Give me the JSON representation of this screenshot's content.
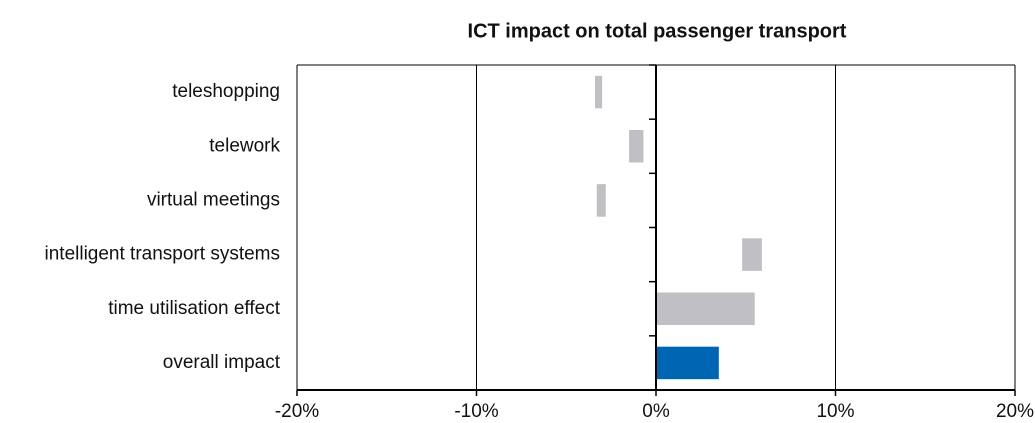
{
  "chart_data": {
    "type": "range-bar",
    "title": "ICT impact on total passenger transport",
    "categories": [
      "teleshopping",
      "telework",
      "virtual meetings",
      "intelligent transport systems",
      "time utilisation effect",
      "overall impact"
    ],
    "low": [
      -3.4,
      -1.5,
      -3.3,
      4.8,
      0,
      0
    ],
    "high": [
      -3.0,
      -0.7,
      -2.8,
      5.9,
      5.5,
      3.5
    ],
    "colors": [
      "#bfbfc4",
      "#bfbfc4",
      "#bfbfc4",
      "#bfbfc4",
      "#bfbfc4",
      "#0066b3"
    ],
    "xlim": [
      -20,
      20
    ],
    "xticks": [
      {
        "value": -20,
        "label": "-20%"
      },
      {
        "value": -10,
        "label": "-10%"
      },
      {
        "value": 0,
        "label": "0%"
      },
      {
        "value": 10,
        "label": "10%"
      },
      {
        "value": 20,
        "label": "20%"
      }
    ],
    "grid": true
  }
}
